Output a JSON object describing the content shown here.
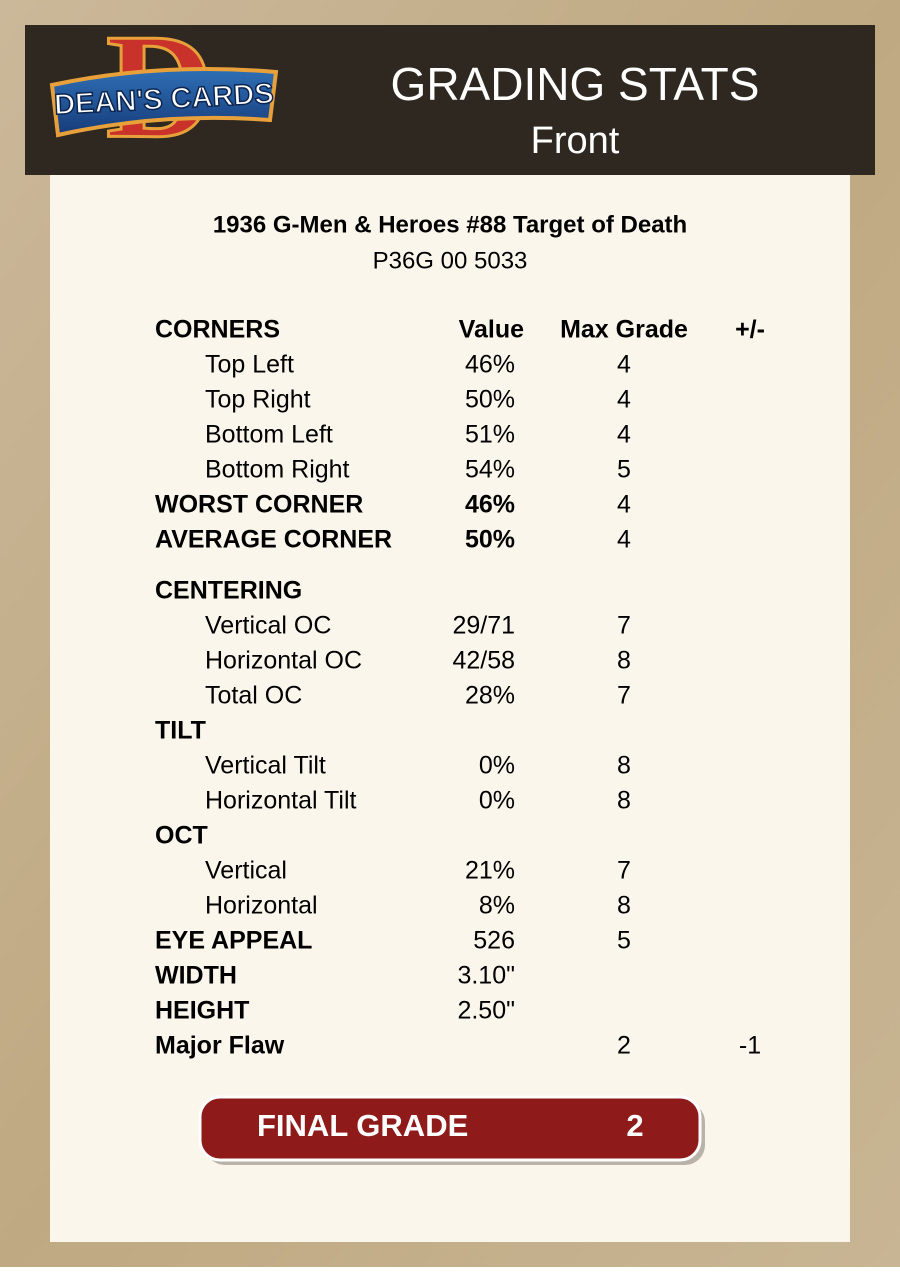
{
  "logo": {
    "letter": "D",
    "text": "DEAN'S CARDS"
  },
  "header": {
    "title": "GRADING STATS",
    "subtitle": "Front"
  },
  "card": {
    "title": "1936 G-Men & Heroes #88  Target of Death",
    "cert": "P36G 00 5033"
  },
  "table": {
    "rows": [
      [
        "CORNERS",
        "Value",
        "Max Grade",
        "+/-"
      ],
      [
        "Top Left",
        "46%",
        4,
        null
      ],
      [
        "Top Right",
        "50%",
        4,
        null
      ],
      [
        "Bottom Left",
        "51%",
        4,
        null
      ],
      [
        "Bottom Right",
        "54%",
        5,
        null
      ],
      [
        "WORST CORNER",
        "46%",
        4,
        null
      ],
      [
        "AVERAGE CORNER",
        "50%",
        4,
        null
      ],
      [
        "CENTERING",
        null,
        null,
        null
      ],
      [
        "Vertical OC",
        "29/71",
        7,
        null
      ],
      [
        "Horizontal OC",
        "42/58",
        8,
        null
      ],
      [
        "Total OC",
        "28%",
        7,
        null
      ],
      [
        "TILT",
        null,
        null,
        null
      ],
      [
        "Vertical Tilt",
        "0%",
        8,
        null
      ],
      [
        "Horizontal Tilt",
        "0%",
        8,
        null
      ],
      [
        "OCT",
        null,
        null,
        null
      ],
      [
        "Vertical",
        "21%",
        7,
        null
      ],
      [
        "Horizontal",
        "8%",
        8,
        null
      ],
      [
        "EYE APPEAL",
        "526",
        5,
        null
      ],
      [
        "WIDTH",
        "3.10\"",
        null,
        null
      ],
      [
        "HEIGHT",
        "2.50\"",
        null,
        null
      ],
      [
        "Major Flaw",
        null,
        2,
        -1
      ]
    ]
  },
  "final": {
    "label": "FINAL GRADE",
    "value": 2
  }
}
